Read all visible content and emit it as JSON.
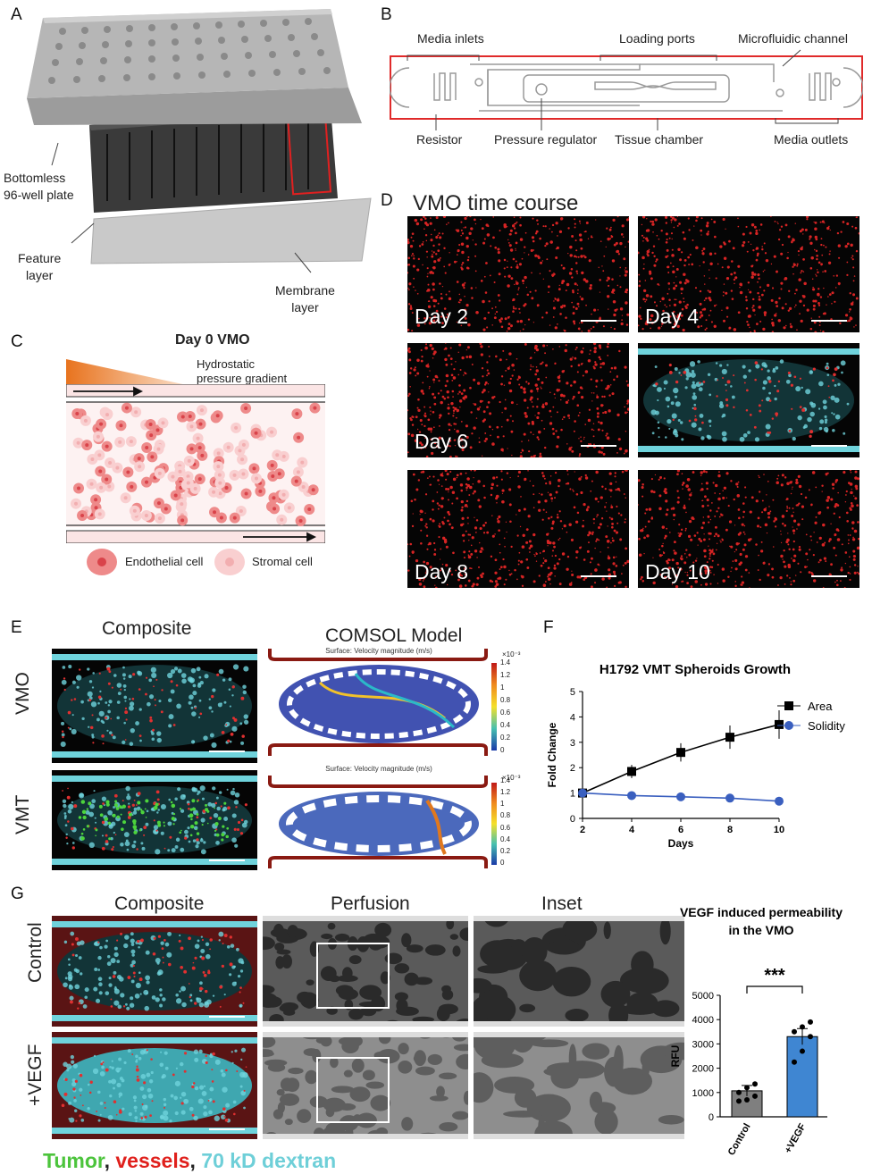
{
  "panel_letters": [
    "A",
    "B",
    "C",
    "D",
    "E",
    "F",
    "G"
  ],
  "panelA": {
    "labels": [
      "Bottomless\n96-well plate",
      "Feature\nlayer",
      "Membrane\nlayer"
    ]
  },
  "panelB": {
    "labels": {
      "media_inlets": "Media inlets",
      "loading_ports": "Loading ports",
      "microfluidic_channel": "Microfluidic channel",
      "resistor": "Resistor",
      "pressure_regulator": "Pressure regulator",
      "tissue_chamber": "Tissue chamber",
      "media_outlets": "Media outlets"
    }
  },
  "panelC": {
    "title": "Day 0 VMO",
    "gradient_label": "Hydrostatic\npressure gradient",
    "legend": [
      "Endothelial cell",
      "Stromal cell"
    ]
  },
  "panelD": {
    "title": "VMO time course",
    "days": [
      "Day 2",
      "Day 4",
      "Day 6",
      "Day 8",
      "Day 10"
    ]
  },
  "panelE": {
    "col_titles": [
      "Composite",
      "COMSOL Model"
    ],
    "row_labels": [
      "VMO",
      "VMT"
    ],
    "model_caption": "Surface: Velocity magnitude (m/s)",
    "colorbar_exp": "×10⁻³",
    "colorbar_ticks": [
      "1.4",
      "1.2",
      "1",
      "0.8",
      "0.6",
      "0.4",
      "0.2",
      "0"
    ]
  },
  "panelG": {
    "col_titles": [
      "Composite",
      "Perfusion",
      "Inset"
    ],
    "row_labels": [
      "Control",
      "+VEGF"
    ],
    "caption_parts": [
      "Tumor",
      ", ",
      "vessels",
      ", ",
      "70 kD dextran"
    ]
  },
  "colors": {
    "area": "#000000",
    "solidity": "#3a5fbf",
    "bar_control": "#7f7f7f",
    "bar_vegf": "#3f86d2",
    "tumor": "#4cc43c",
    "vessels": "#e0201c",
    "dextran": "#6ecfd8"
  },
  "chart_data": [
    {
      "type": "line",
      "title": "H1792 VMT Spheroids Growth",
      "xlabel": "Days",
      "ylabel": "Fold Change",
      "x": [
        2,
        4,
        6,
        8,
        10
      ],
      "xlim": [
        2,
        10
      ],
      "ylim": [
        0,
        5
      ],
      "xticks": [
        "2",
        "4",
        "6",
        "8",
        "10"
      ],
      "yticks": [
        "0",
        "1",
        "2",
        "3",
        "4",
        "5"
      ],
      "series": [
        {
          "name": "Area",
          "values": [
            1.0,
            1.85,
            2.6,
            3.2,
            3.7
          ]
        },
        {
          "name": "Solidity",
          "values": [
            1.0,
            0.9,
            0.85,
            0.8,
            0.68
          ]
        }
      ],
      "legend": "right"
    },
    {
      "type": "bar",
      "title": "VEGF induced permeability\nin the VMO",
      "xlabel": "",
      "ylabel": "RFU",
      "categories": [
        "Control",
        "+VEGF"
      ],
      "values": [
        1070,
        3300
      ],
      "ylim": [
        0,
        5000
      ],
      "yticks": [
        "0",
        "1000",
        "2000",
        "3000",
        "4000",
        "5000"
      ],
      "points": [
        [
          650,
          700,
          850,
          1000,
          1200,
          1350
        ],
        [
          2250,
          2700,
          3300,
          3500,
          3700,
          3900
        ]
      ],
      "significance": "***"
    }
  ]
}
